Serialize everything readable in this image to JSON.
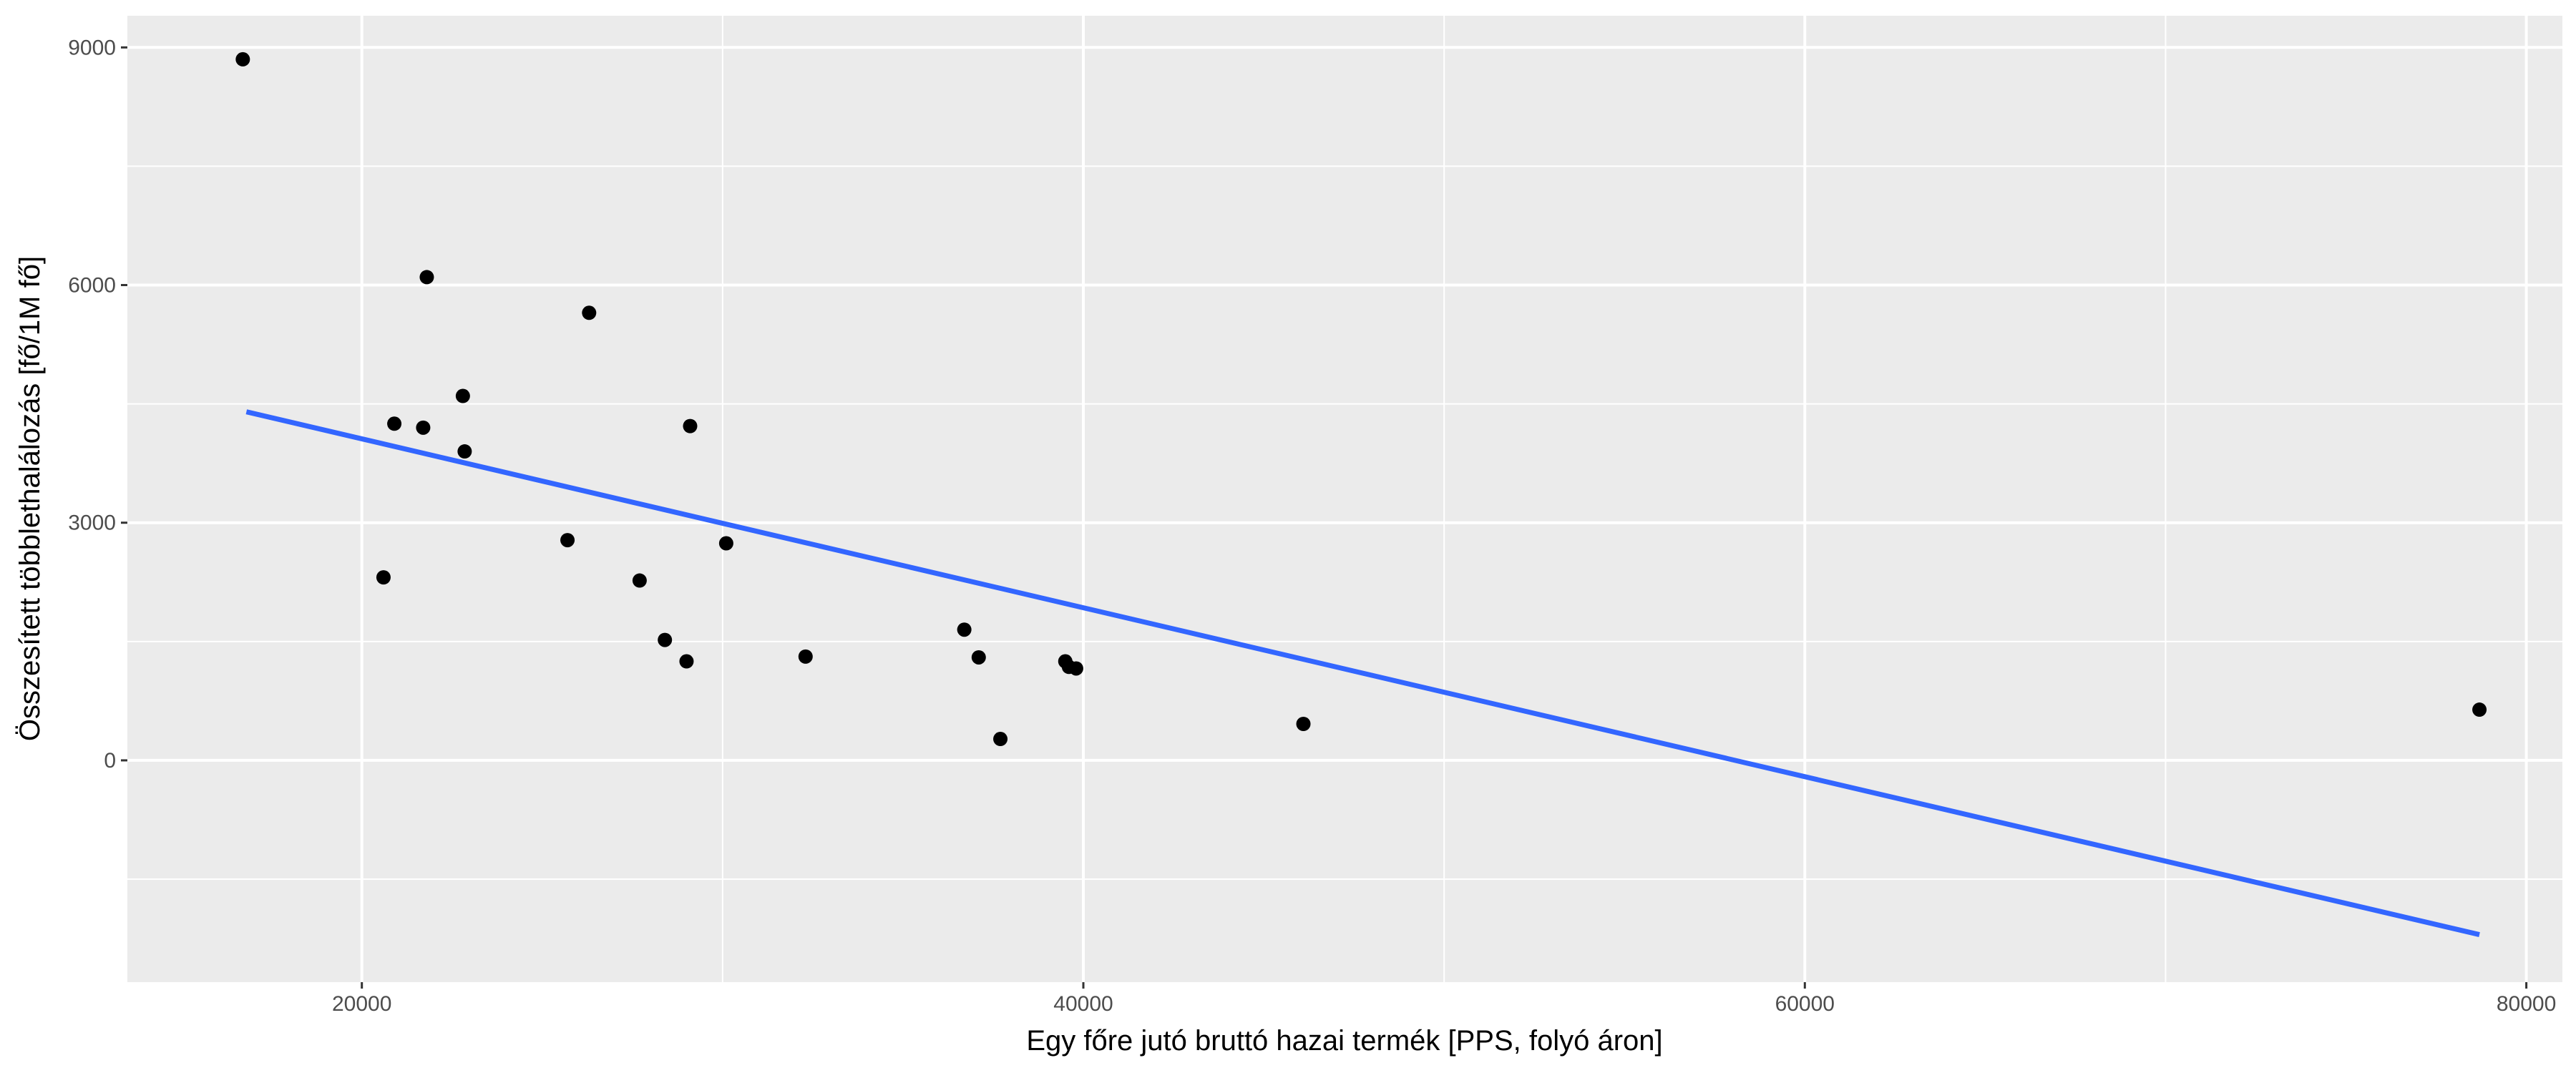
{
  "chart_data": {
    "type": "scatter",
    "title": "",
    "xlabel": "Egy főre jutó bruttó hazai termék [PPS, folyó áron]",
    "ylabel": "Összesített többlethalálozás [fő/1M fő]",
    "xlim": [
      13500,
      81000
    ],
    "ylim": [
      -2800,
      9400
    ],
    "x_ticks": [
      20000,
      40000,
      60000,
      80000
    ],
    "x_tick_labels": [
      "20000",
      "40000",
      "60000",
      "80000"
    ],
    "x_minor_ticks": [
      30000,
      50000,
      70000
    ],
    "y_ticks": [
      0,
      3000,
      6000,
      9000
    ],
    "y_tick_labels": [
      "0",
      "3000",
      "6000",
      "9000"
    ],
    "y_minor_ticks": [
      -1500,
      1500,
      4500,
      7500
    ],
    "grid": true,
    "legend": "none",
    "points": [
      {
        "x": 16700,
        "y": 8850
      },
      {
        "x": 21800,
        "y": 6100
      },
      {
        "x": 26300,
        "y": 5650
      },
      {
        "x": 22800,
        "y": 4600
      },
      {
        "x": 20900,
        "y": 4250
      },
      {
        "x": 21700,
        "y": 4200
      },
      {
        "x": 29100,
        "y": 4220
      },
      {
        "x": 22850,
        "y": 3900
      },
      {
        "x": 25700,
        "y": 2780
      },
      {
        "x": 30100,
        "y": 2740
      },
      {
        "x": 20600,
        "y": 2310
      },
      {
        "x": 27700,
        "y": 2270
      },
      {
        "x": 28400,
        "y": 1520
      },
      {
        "x": 29000,
        "y": 1250
      },
      {
        "x": 32300,
        "y": 1310
      },
      {
        "x": 36700,
        "y": 1650
      },
      {
        "x": 37100,
        "y": 1300
      },
      {
        "x": 39500,
        "y": 1250
      },
      {
        "x": 39600,
        "y": 1180
      },
      {
        "x": 39800,
        "y": 1160
      },
      {
        "x": 37700,
        "y": 270
      },
      {
        "x": 46100,
        "y": 460
      },
      {
        "x": 78700,
        "y": 640
      }
    ],
    "trend_line": {
      "x": [
        16800,
        78700
      ],
      "y": [
        4400,
        -2200
      ],
      "color": "#3366FF"
    },
    "colors": {
      "panel": "#EBEBEB",
      "grid_major": "#FFFFFF",
      "points": "#000000",
      "line": "#3366FF"
    }
  }
}
